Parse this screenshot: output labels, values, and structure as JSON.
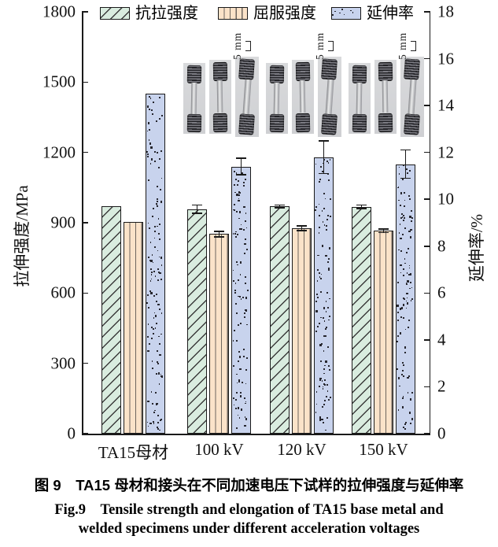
{
  "figure": {
    "caption_zh": "图 9　TA15 母材和接头在不同加速电压下试样的拉伸强度与延伸率",
    "caption_en_line1": "Fig.9　Tensile strength and elongation of TA15 base metal and",
    "caption_en_line2": "welded specimens under different acceleration voltages"
  },
  "inset": {
    "scale_label": "5 mm",
    "clusters": 3,
    "photos_per_cluster": 3
  },
  "chart_data": {
    "type": "bar",
    "categories": [
      "TA15母材",
      "100 kV",
      "120 kV",
      "150 kV"
    ],
    "series": [
      {
        "name": "抗拉强度",
        "axis": "left",
        "pattern": "diagonal",
        "values": [
          970,
          958,
          970,
          968
        ],
        "errors": [
          0,
          18,
          6,
          8
        ],
        "fill": "#d9ecdf"
      },
      {
        "name": "屈服强度",
        "axis": "left",
        "pattern": "vertical",
        "values": [
          905,
          852,
          876,
          866
        ],
        "errors": [
          0,
          12,
          10,
          8
        ],
        "fill": "#fbe3c9"
      },
      {
        "name": "延伸率",
        "axis": "right",
        "pattern": "speckle",
        "values": [
          14.5,
          11.4,
          11.8,
          11.5
        ],
        "errors": [
          0,
          0.35,
          0.7,
          0.6
        ],
        "fill": "#c8d3ed"
      }
    ],
    "left_axis": {
      "label": "拉伸强度/MPa",
      "min": 0,
      "max": 1800,
      "ticks": [
        0,
        300,
        600,
        900,
        1200,
        1500,
        1800
      ]
    },
    "right_axis": {
      "label": "延伸率/%",
      "min": 0,
      "max": 18,
      "ticks": [
        0,
        2,
        4,
        6,
        8,
        10,
        12,
        14,
        16,
        18
      ]
    },
    "legend_position": "top",
    "grid": false,
    "bar_outline": "#1a1a1a"
  }
}
